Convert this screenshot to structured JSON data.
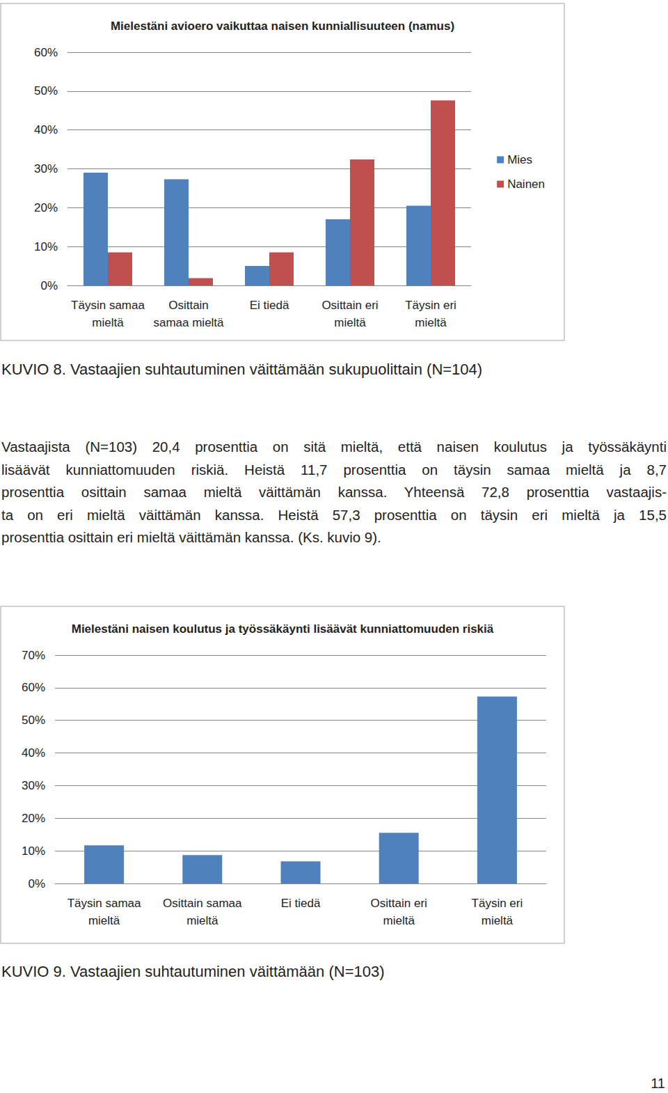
{
  "chart_data": [
    {
      "type": "bar",
      "title": "Mielestäni avioero vaikuttaa naisen kunniallisuuteen (namus)",
      "categories": [
        "Täysin samaa\nmieltä",
        "Osittain\nsamaa mieltä",
        "Ei tiedä",
        "Osittain eri\nmieltä",
        "Täysin eri\nmieltä"
      ],
      "series": [
        {
          "name": "Mies",
          "color": "#4f81bd",
          "values": [
            29.0,
            27.3,
            5.0,
            17.0,
            20.5
          ]
        },
        {
          "name": "Nainen",
          "color": "#c0504d",
          "values": [
            8.5,
            1.9,
            8.5,
            32.4,
            47.6
          ]
        }
      ],
      "ylim": [
        0,
        60
      ],
      "yticks": [
        {
          "value": 0,
          "label": "0%"
        },
        {
          "value": 10,
          "label": "10%"
        },
        {
          "value": 20,
          "label": "20%"
        },
        {
          "value": 30,
          "label": "30%"
        },
        {
          "value": 40,
          "label": "40%"
        },
        {
          "value": 50,
          "label": "50%"
        },
        {
          "value": 60,
          "label": "60%"
        }
      ],
      "grid": true,
      "legend": "right"
    },
    {
      "type": "bar",
      "title": "Mielestäni naisen koulutus ja työssäkäynti lisäävät kunniattomuuden riskiä",
      "categories": [
        "Täysin samaa\nmieltä",
        "Osittain samaa\nmieltä",
        "Ei tiedä",
        "Osittain eri\nmieltä",
        "Täysin eri\nmieltä"
      ],
      "values": [
        11.7,
        8.7,
        6.8,
        15.5,
        57.3
      ],
      "color": "#4f81bd",
      "ylim": [
        0,
        70
      ],
      "yticks": [
        {
          "value": 0,
          "label": "0%"
        },
        {
          "value": 10,
          "label": "10%"
        },
        {
          "value": 20,
          "label": "20%"
        },
        {
          "value": 30,
          "label": "30%"
        },
        {
          "value": 40,
          "label": "40%"
        },
        {
          "value": 50,
          "label": "50%"
        },
        {
          "value": 60,
          "label": "60%"
        },
        {
          "value": 70,
          "label": "70%"
        }
      ],
      "grid": true
    }
  ],
  "document": {
    "captions": [
      "KUVIO 8. Vastaajien suhtautuminen väittämään sukupuolittain (N=104)",
      "KUVIO 9. Vastaajien suhtautuminen väittämään (N=103)"
    ],
    "paragraph_lines": [
      "Vastaajista (N=103) 20,4 prosenttia on sitä mieltä, että naisen koulutus ja työssäkäynti",
      "lisäävät kunniattomuuden riskiä. Heistä 11,7 prosenttia on täysin samaa mieltä ja 8,7",
      "prosenttia osittain samaa mieltä väittämän kanssa. Yhteensä 72,8 prosenttia vastaajis-",
      "ta on eri mieltä väittämän kanssa. Heistä 57,3 prosenttia on täysin eri mieltä ja 15,5",
      "prosenttia osittain eri mieltä väittämän kanssa. (Ks. kuvio 9)."
    ],
    "page_number": 11
  }
}
